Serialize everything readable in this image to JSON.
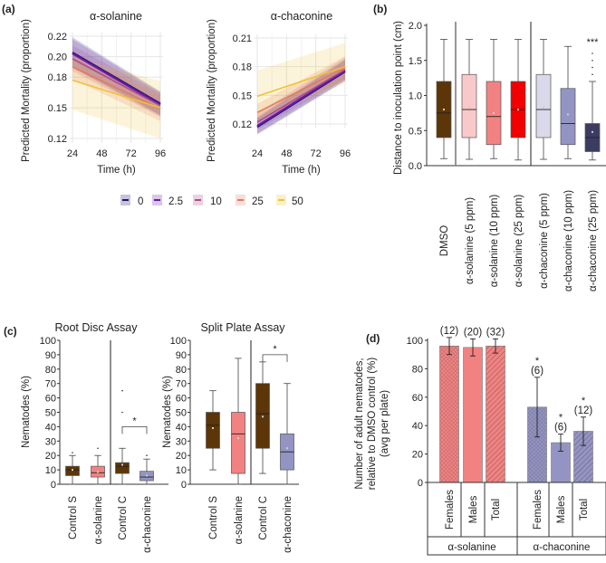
{
  "panel_labels": [
    "(a)",
    "(b)",
    "(c)",
    "(d)"
  ],
  "legend": {
    "items": [
      {
        "label": "0",
        "color": "#1c1470"
      },
      {
        "label": "2.5",
        "color": "#6a1ca8"
      },
      {
        "label": "10",
        "color": "#b04a8c"
      },
      {
        "label": "25",
        "color": "#e07c5a"
      },
      {
        "label": "50",
        "color": "#f0c232"
      }
    ]
  },
  "chart_data": [
    {
      "type": "line",
      "title": "α-solanine",
      "xlabel": "Time (h)",
      "ylabel": "Predicted Mortality (proportion)",
      "x": [
        24,
        96
      ],
      "xticks": [
        "24",
        "48",
        "72",
        "96"
      ],
      "yticks": [
        "0.12",
        "0.15",
        "0.18",
        "0.20",
        "0.22"
      ],
      "ytick_values": [
        0.12,
        0.15,
        0.18,
        0.2,
        0.22
      ],
      "grid": true,
      "series": [
        {
          "name": "0",
          "values": [
            0.204,
            0.154
          ],
          "lower": [
            0.19,
            0.143
          ],
          "upper": [
            0.219,
            0.166
          ]
        },
        {
          "name": "2.5",
          "values": [
            0.203,
            0.153
          ],
          "lower": [
            0.189,
            0.142
          ],
          "upper": [
            0.217,
            0.165
          ]
        },
        {
          "name": "10",
          "values": [
            0.198,
            0.152
          ],
          "lower": [
            0.186,
            0.141
          ],
          "upper": [
            0.211,
            0.164
          ]
        },
        {
          "name": "25",
          "values": [
            0.19,
            0.149
          ],
          "lower": [
            0.178,
            0.137
          ],
          "upper": [
            0.203,
            0.162
          ]
        },
        {
          "name": "50",
          "values": [
            0.177,
            0.15
          ],
          "lower": [
            0.148,
            0.12
          ],
          "upper": [
            0.2,
            0.176
          ]
        }
      ]
    },
    {
      "type": "line",
      "title": "α-chaconine",
      "xlabel": "Time (h)",
      "ylabel": "Predicted Mortality (proportion)",
      "x": [
        24,
        96
      ],
      "xticks": [
        "24",
        "48",
        "72",
        "96"
      ],
      "yticks": [
        "0.12",
        "0.15",
        "0.18",
        "0.21"
      ],
      "ytick_values": [
        0.12,
        0.15,
        0.18,
        0.21
      ],
      "grid": true,
      "series": [
        {
          "name": "0",
          "values": [
            0.117,
            0.175
          ],
          "lower": [
            0.109,
            0.165
          ],
          "upper": [
            0.126,
            0.187
          ]
        },
        {
          "name": "2.5",
          "values": [
            0.118,
            0.176
          ],
          "lower": [
            0.11,
            0.166
          ],
          "upper": [
            0.127,
            0.188
          ]
        },
        {
          "name": "10",
          "values": [
            0.122,
            0.177
          ],
          "lower": [
            0.114,
            0.167
          ],
          "upper": [
            0.131,
            0.19
          ]
        },
        {
          "name": "25",
          "values": [
            0.132,
            0.179
          ],
          "lower": [
            0.123,
            0.167
          ],
          "upper": [
            0.141,
            0.191
          ]
        },
        {
          "name": "50",
          "values": [
            0.149,
            0.18
          ],
          "lower": [
            0.124,
            0.163
          ],
          "upper": [
            0.176,
            0.205
          ]
        }
      ]
    },
    {
      "type": "box",
      "ylabel": "Distance to inoculation point (cm)",
      "ylim": [
        0,
        2
      ],
      "yticks": [
        "0.0",
        "0.5",
        "1.0",
        "1.5",
        "2.0"
      ],
      "ytick_values": [
        0,
        0.5,
        1,
        1.5,
        2
      ],
      "boxes": [
        {
          "label": "DMSO",
          "color": "#5c3608",
          "min": 0.1,
          "q1": 0.4,
          "median": 0.75,
          "q3": 1.2,
          "max": 1.8,
          "mean": 0.8,
          "outliers": []
        },
        {
          "label": "α-solanine (5 ppm)",
          "color": "#f9c9c9",
          "min": 0.09,
          "q1": 0.4,
          "median": 0.8,
          "q3": 1.3,
          "max": 1.8,
          "mean": 0.84,
          "outliers": []
        },
        {
          "label": "α-solanine (10 ppm)",
          "color": "#f28282",
          "min": 0.1,
          "q1": 0.3,
          "median": 0.7,
          "q3": 1.2,
          "max": 1.8,
          "mean": 0.75,
          "outliers": []
        },
        {
          "label": "α-solanine (25 ppm)",
          "color": "#f20000",
          "min": 0.08,
          "q1": 0.4,
          "median": 0.8,
          "q3": 1.2,
          "max": 1.8,
          "mean": 0.8,
          "outliers": []
        },
        {
          "label": "α-chaconine (5 ppm)",
          "color": "#d9d9ea",
          "min": 0.09,
          "q1": 0.4,
          "median": 0.8,
          "q3": 1.3,
          "max": 1.8,
          "mean": 0.83,
          "outliers": []
        },
        {
          "label": "α-chaconine (10 ppm)",
          "color": "#9494c4",
          "min": 0.1,
          "q1": 0.3,
          "median": 0.6,
          "q3": 1.1,
          "max": 1.7,
          "mean": 0.73,
          "outliers": []
        },
        {
          "label": "α-chaconine (25 ppm)",
          "color": "#3c3c62",
          "min": 0.08,
          "q1": 0.2,
          "median": 0.4,
          "q3": 0.6,
          "max": 1.2,
          "mean": 0.48,
          "outliers": [
            1.3,
            1.4,
            1.5,
            1.6
          ]
        }
      ],
      "annotations": [
        {
          "box": 6,
          "text": "***"
        }
      ]
    },
    {
      "type": "box",
      "title": "Root Disc Assay",
      "ylabel": "Nematodes (%)",
      "ylim": [
        0,
        100
      ],
      "yticks": [
        "0",
        "10",
        "20",
        "30",
        "40",
        "50",
        "60",
        "70",
        "80",
        "90",
        "100"
      ],
      "boxes": [
        {
          "label": "Control S",
          "color": "#5c3608",
          "min": 0,
          "q1": 6,
          "median": 10,
          "q3": 12.5,
          "max": 20,
          "mean": 10,
          "outliers": [
            22
          ]
        },
        {
          "label": "α-solanine",
          "color": "#f28282",
          "min": 0,
          "q1": 5,
          "median": 8,
          "q3": 12.5,
          "max": 20,
          "mean": 8.5,
          "outliers": [
            25
          ]
        },
        {
          "label": "Control C",
          "color": "#5c3608",
          "min": 0,
          "q1": 7.5,
          "median": 12.5,
          "q3": 15,
          "max": 25,
          "mean": 13.5,
          "outliers": [
            50,
            65
          ]
        },
        {
          "label": "α-chaconine",
          "color": "#9494c4",
          "min": 0,
          "q1": 2.5,
          "median": 5,
          "q3": 9,
          "max": 17.5,
          "mean": 6,
          "outliers": [
            20
          ]
        }
      ],
      "significance": {
        "from": 2,
        "to": 3,
        "level": 40,
        "text": "*"
      }
    },
    {
      "type": "box",
      "title": "Split Plate Assay",
      "ylabel": "Nematodes (%)",
      "ylim": [
        0,
        100
      ],
      "yticks": [
        "0",
        "10",
        "20",
        "30",
        "40",
        "50",
        "60",
        "70",
        "80",
        "90",
        "100"
      ],
      "boxes": [
        {
          "label": "Control S",
          "color": "#5c3608",
          "min": 10,
          "q1": 25,
          "median": 41,
          "q3": 50,
          "max": 65,
          "mean": 39,
          "outliers": []
        },
        {
          "label": "α-solanine",
          "color": "#f28282",
          "min": 0,
          "q1": 7.5,
          "median": 35,
          "q3": 50,
          "max": 87.5,
          "mean": 32,
          "outliers": []
        },
        {
          "label": "Control C",
          "color": "#5c3608",
          "min": 7.5,
          "q1": 25,
          "median": 49,
          "q3": 70,
          "max": 85,
          "mean": 47,
          "outliers": []
        },
        {
          "label": "α-chaconine",
          "color": "#9494c4",
          "min": 0,
          "q1": 10,
          "median": 22.5,
          "q3": 35,
          "max": 70,
          "mean": 25,
          "outliers": []
        }
      ],
      "significance": {
        "from": 2,
        "to": 3,
        "level": 90,
        "text": "*"
      }
    },
    {
      "type": "bar",
      "ylabel_lines": [
        "Number of adult nematodes,",
        "relative to DMSO control (%)",
        "(avg per plate)"
      ],
      "ylim": [
        0,
        100
      ],
      "yticks": [
        "0",
        "20",
        "40",
        "60",
        "80",
        "100"
      ],
      "groups": [
        "α-solanine",
        "α-chaconine"
      ],
      "categories": [
        "Females",
        "Males",
        "Total",
        "Females",
        "Males",
        "Total"
      ],
      "values": [
        96,
        95,
        96,
        53,
        28,
        36
      ],
      "errors": [
        6,
        6,
        5,
        21,
        6,
        10
      ],
      "labels": [
        "(12)",
        "(20)",
        "(32)",
        "(6)",
        "(6)",
        "(12)"
      ],
      "stars": [
        "",
        "",
        "",
        "*",
        "*",
        "*"
      ],
      "colors": [
        "#f28282",
        "#f28282",
        "#f28282",
        "#9494c4",
        "#9494c4",
        "#9494c4"
      ],
      "hatch": [
        "cross",
        "none",
        "diagonal",
        "cross",
        "none",
        "diagonal"
      ]
    }
  ]
}
